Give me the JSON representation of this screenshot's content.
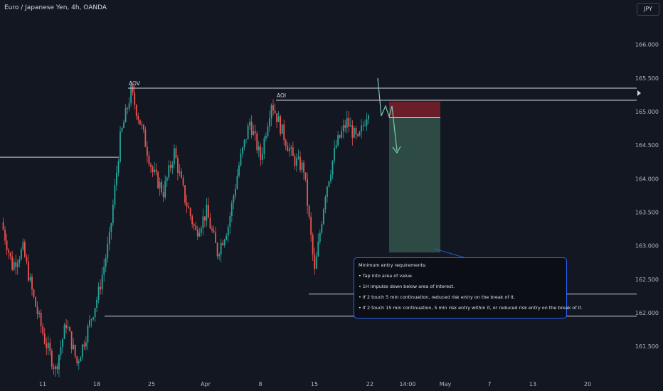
{
  "header": {
    "symbol_title": "Euro / Japanese Yen, 4h, OANDA",
    "currency": "JPY"
  },
  "colors": {
    "background": "#131722",
    "up_candle": "#26a69a",
    "down_candle": "#ef5350",
    "line": "#d1d4dc",
    "stop_zone": "#6b1e2a",
    "target_zone": "#2e4a44",
    "arrow": "#7ec9b2",
    "note_border": "#2962ff"
  },
  "chart_data": {
    "type": "candlestick",
    "x_tick_labels": [
      "11",
      "18",
      "25",
      "Apr",
      "8",
      "15",
      "22",
      "14:00",
      "May",
      "7",
      "13",
      "20"
    ],
    "y_tick_labels": [
      "161.500",
      "162.000",
      "162.500",
      "163.000",
      "163.500",
      "164.000",
      "164.500",
      "165.000",
      "165.500",
      "166.000"
    ],
    "ylim": [
      161.0,
      166.6
    ],
    "levels": [
      {
        "label": "AOV",
        "price": 165.35
      },
      {
        "label": "AOI",
        "price": 165.17
      },
      {
        "label": "",
        "price": 164.32
      },
      {
        "label": "",
        "price": 162.28
      },
      {
        "label": "",
        "price": 161.95
      }
    ],
    "position": {
      "stop_top": 165.15,
      "entry": 164.91,
      "target": 162.9
    },
    "path": [
      [
        "03-05",
        163.35
      ],
      [
        "03-06",
        162.7
      ],
      [
        "03-07",
        162.95
      ],
      [
        "03-08",
        162.2
      ],
      [
        "03-11",
        161.6
      ],
      [
        "03-12",
        161.15
      ],
      [
        "03-13",
        161.85
      ],
      [
        "03-14",
        161.25
      ],
      [
        "03-15",
        161.75
      ],
      [
        "03-18",
        162.3
      ],
      [
        "03-19",
        163.1
      ],
      [
        "03-20",
        164.6
      ],
      [
        "03-21",
        165.3
      ],
      [
        "03-22",
        164.75
      ],
      [
        "03-25",
        164.1
      ],
      [
        "03-26",
        163.8
      ],
      [
        "03-27",
        164.4
      ],
      [
        "03-28",
        163.7
      ],
      [
        "03-29",
        163.2
      ],
      [
        "04-01",
        163.5
      ],
      [
        "04-02",
        162.9
      ],
      [
        "04-03",
        163.3
      ],
      [
        "04-04",
        164.2
      ],
      [
        "04-05",
        164.85
      ],
      [
        "04-08",
        164.3
      ],
      [
        "04-09",
        165.15
      ],
      [
        "04-10",
        164.7
      ],
      [
        "04-11",
        164.3
      ],
      [
        "04-12",
        164.15
      ],
      [
        "04-15",
        162.6
      ],
      [
        "04-16",
        163.8
      ],
      [
        "04-17",
        164.5
      ],
      [
        "04-18",
        164.85
      ],
      [
        "04-19",
        164.55
      ],
      [
        "04-22",
        165.05
      ]
    ]
  },
  "note": {
    "title": "Minimum entry requirements:",
    "items": [
      "• Tap into area of value.",
      "• 1H impulse down below area of interest.",
      "• If 2 touch 5 min continuation, reduced risk entry on the break of it.",
      "• If 2 touch 15 min continuation, 5 min risk entry within it, or reduced risk entry on the break of it."
    ]
  }
}
